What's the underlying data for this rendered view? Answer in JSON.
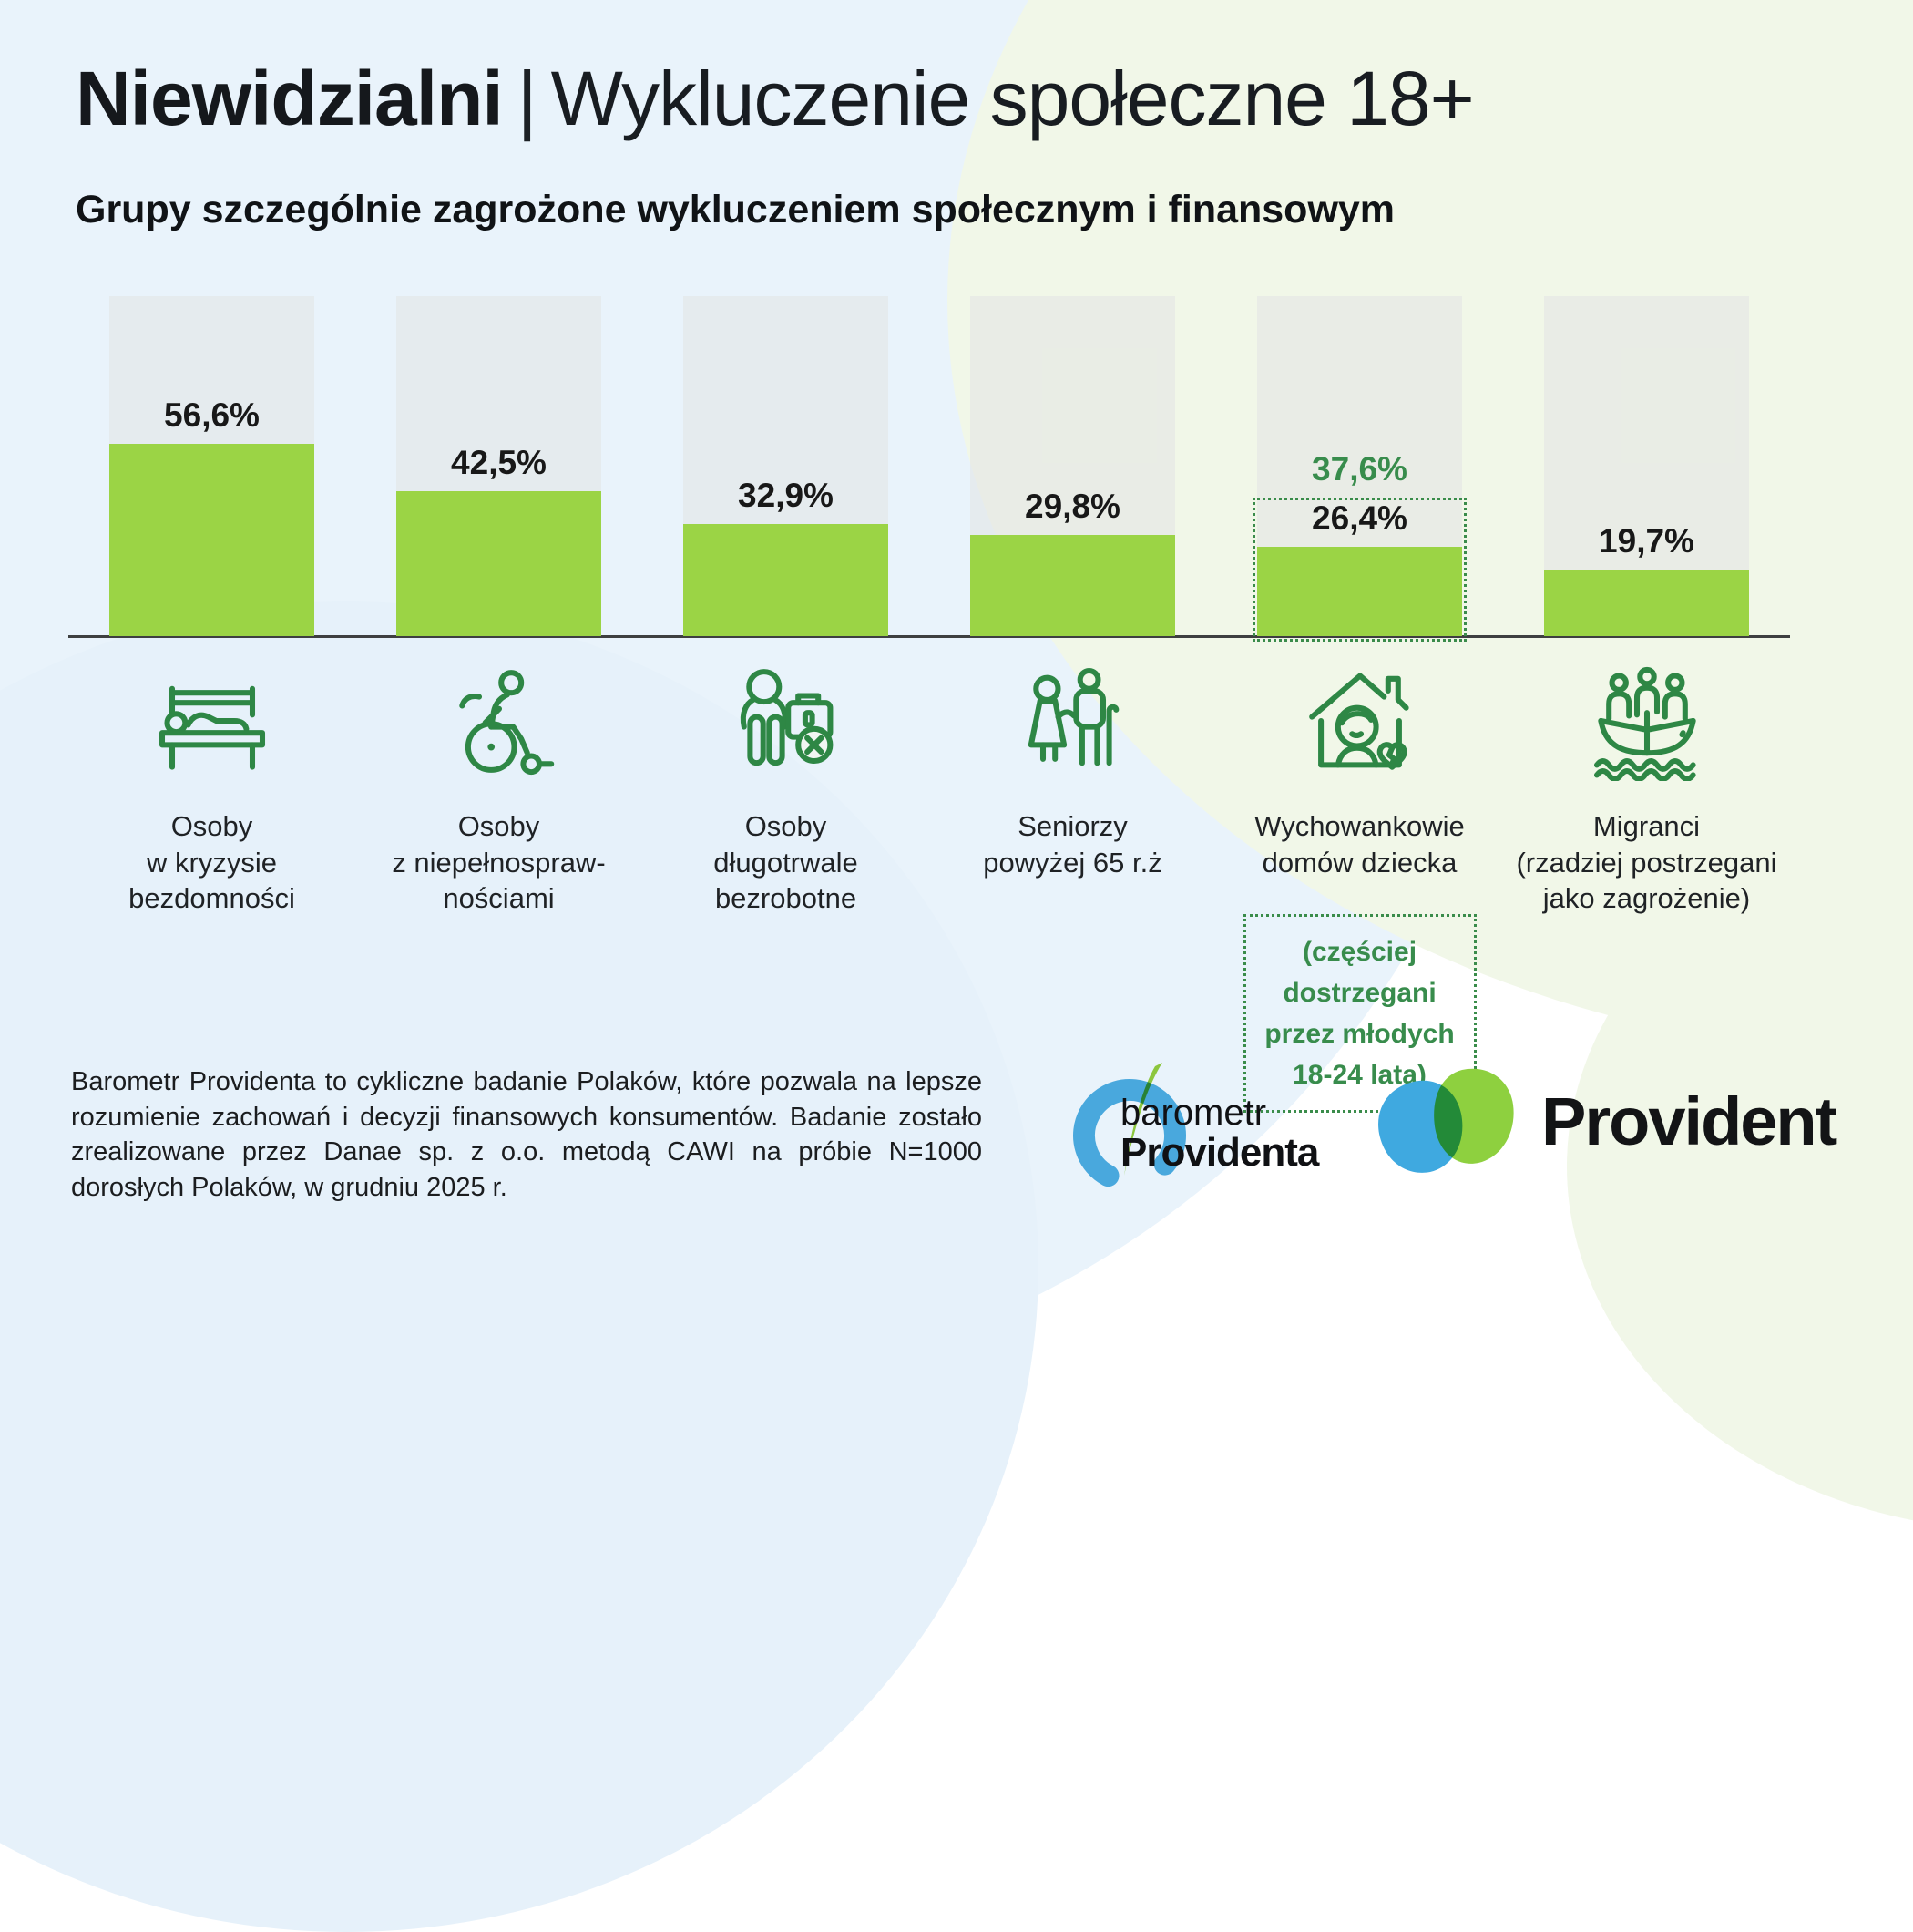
{
  "title": {
    "highlight": "Niewidzialni",
    "separator": "|",
    "rest": "Wykluczenie społeczne 18+"
  },
  "subtitle": "Grupy szczególnie zagrożone wykluczeniem społecznym i finansowym",
  "chart_data": {
    "type": "bar",
    "title": "Grupy szczególnie zagrożone wykluczeniem społecznym i finansowym",
    "unit": "%",
    "ylim": [
      0,
      100
    ],
    "grid": false,
    "legend": "none",
    "categories": [
      "Osoby w kryzysie bezdomności",
      "Osoby z niepełnosprawnościami",
      "Osoby długotrwale bezrobotne",
      "Seniorzy powyżej 65 r.ż",
      "Wychowankowie domów dziecka",
      "Migranci (rzadziej postrzegani jako zagrożenie)"
    ],
    "values": [
      56.6,
      42.5,
      32.9,
      29.8,
      26.4,
      19.7
    ],
    "value_labels": [
      "56,6%",
      "42,5%",
      "32,9%",
      "29,8%",
      "26,4%",
      "19,7%"
    ],
    "annotation": {
      "column_index": 4,
      "value": 37.6,
      "value_label": "37,6%",
      "note": "(częściej dostrzegani przez młodych 18-24 lata)"
    },
    "colors": {
      "bar_fill": "#9bd445",
      "bar_track": "#e7ebea",
      "annotation_green": "#388c4c",
      "icon_green": "#2e8745",
      "axis": "#3e3f40"
    }
  },
  "columns": [
    {
      "value_label": "56,6%",
      "icon": "homeless-bench-icon",
      "lines": [
        "Osoby",
        "w kryzysie",
        "bezdomności"
      ]
    },
    {
      "value_label": "42,5%",
      "icon": "wheelchair-icon",
      "lines": [
        "Osoby",
        "z niepełnospraw-",
        "nościami"
      ]
    },
    {
      "value_label": "32,9%",
      "icon": "unemployed-briefcase-icon",
      "lines": [
        "Osoby",
        "długotrwale",
        "bezrobotne"
      ]
    },
    {
      "value_label": "29,8%",
      "icon": "seniors-icon",
      "lines": [
        "Seniorzy",
        "powyżej 65 r.ż"
      ]
    },
    {
      "value_label": "26,4%",
      "ghost_label": "37,6%",
      "icon": "childrens-home-icon",
      "lines": [
        "Wychowankowie",
        "domów dziecka"
      ],
      "note_lines": [
        "(częściej",
        "dostrzegani",
        "przez młodych",
        "18-24 lata)"
      ]
    },
    {
      "value_label": "19,7%",
      "icon": "migrants-boat-icon",
      "lines": [
        "Migranci",
        "(rzadziej postrzegani",
        "jako zagrożenie)"
      ]
    }
  ],
  "footnote": "Barometr Providenta to cykliczne badanie Polaków, które pozwala na lepsze rozumienie zachowań i decyzji finansowych konsumentów. Badanie zostało zrealizowane przez Danae sp. z o.o. metodą CAWI na próbie N=1000 dorosłych Polaków, w grudniu 2025 r.",
  "logos": {
    "barometr": {
      "line1": "barometr",
      "line2": "Providenta",
      "blue": "#49a8dd",
      "green": "#8cc63e"
    },
    "provident": {
      "wordmark": "Provident",
      "blue": "#3fa9e0",
      "green": "#8ed03f"
    }
  }
}
